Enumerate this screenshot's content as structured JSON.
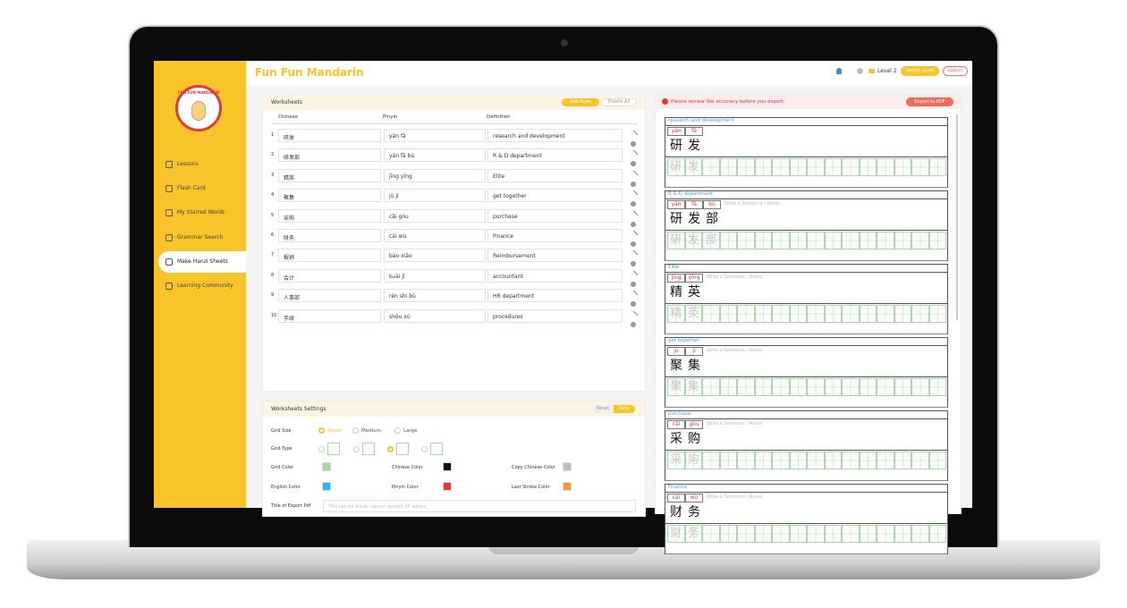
{
  "header": {
    "brand": "Fun Fun Mandarin",
    "logo_text": "FUN FUN MANDARIN",
    "level": "Level 2",
    "switch_level": "Switch Level",
    "logout": "Logout"
  },
  "sidebar": {
    "items": [
      "Lessons",
      "Flash Card",
      "My Starred Words",
      "Grammar Search",
      "Make Hanzi Sheets",
      "Learning Community"
    ],
    "active": 4
  },
  "worksheets": {
    "title": "Worksheets",
    "add_rows": "Add Rows",
    "delete_all": "Delete All",
    "columns": [
      "Chinese",
      "Pinyin",
      "Definition"
    ],
    "rows": [
      {
        "no": 1,
        "chinese": "研发",
        "pinyin": "yán fā",
        "definition": "research and development"
      },
      {
        "no": 2,
        "chinese": "研发部",
        "pinyin": "yán fā bù",
        "definition": "R & D department"
      },
      {
        "no": 3,
        "chinese": "精英",
        "pinyin": "jīng yīng",
        "definition": "Elite"
      },
      {
        "no": 4,
        "chinese": "聚集",
        "pinyin": "jù jí",
        "definition": "get together"
      },
      {
        "no": 5,
        "chinese": "采购",
        "pinyin": "cǎi gòu",
        "definition": "purchase"
      },
      {
        "no": 6,
        "chinese": "财务",
        "pinyin": "cái wù",
        "definition": "Finance"
      },
      {
        "no": 7,
        "chinese": "报销",
        "pinyin": "bào xiāo",
        "definition": "Reimbursement"
      },
      {
        "no": 8,
        "chinese": "会计",
        "pinyin": "kuài jì",
        "definition": "accountant"
      },
      {
        "no": 9,
        "chinese": "人事部",
        "pinyin": "rén shì bù",
        "definition": "HR department"
      },
      {
        "no": 10,
        "chinese": "手续",
        "pinyin": "shǒu xù",
        "definition": "procedures"
      }
    ]
  },
  "settings": {
    "title": "Worksheets Settings",
    "reset": "Reset",
    "save": "Save",
    "grid_size": {
      "label": "Grid Size",
      "options": [
        "Small",
        "Medium",
        "Large"
      ],
      "selected": 0
    },
    "grid_type": {
      "label": "Grid Type",
      "selected": 2
    },
    "colors": [
      {
        "label": "Grid Color",
        "color": "#a5d6a7"
      },
      {
        "label": "Chinese Color",
        "color": "#111111"
      },
      {
        "label": "Copy Chinese Color",
        "color": "#bdbdbd"
      },
      {
        "label": "English Color",
        "color": "#29b6f6"
      },
      {
        "label": "Pinyin Color",
        "color": "#e53935"
      },
      {
        "label": "Last Stroke Color",
        "color": "#ef9a3c"
      }
    ],
    "export_title": {
      "label": "Title of Export Pdf",
      "placeholder": "This can be blank, cannot exceed 30 letters"
    }
  },
  "preview": {
    "warning": "Please review the accuracy before you export.",
    "export": "Export to PDF",
    "notes_placeholder": "Write a Sentence / Notes",
    "cards": [
      {
        "definition": "research and development",
        "syllables": [
          {
            "pinyin": "yán",
            "hanzi": "研"
          },
          {
            "pinyin": "fā",
            "hanzi": "发"
          }
        ]
      },
      {
        "definition": "R & D department",
        "syllables": [
          {
            "pinyin": "yán",
            "hanzi": "研"
          },
          {
            "pinyin": "fā",
            "hanzi": "发"
          },
          {
            "pinyin": "bù",
            "hanzi": "部"
          }
        ]
      },
      {
        "definition": "Elite",
        "syllables": [
          {
            "pinyin": "jīng",
            "hanzi": "精"
          },
          {
            "pinyin": "yīng",
            "hanzi": "英"
          }
        ]
      },
      {
        "definition": "get together",
        "syllables": [
          {
            "pinyin": "jù",
            "hanzi": "聚"
          },
          {
            "pinyin": "jí",
            "hanzi": "集"
          }
        ]
      },
      {
        "definition": "purchase",
        "syllables": [
          {
            "pinyin": "cǎi",
            "hanzi": "采"
          },
          {
            "pinyin": "gòu",
            "hanzi": "购"
          }
        ]
      },
      {
        "definition": "Finance",
        "syllables": [
          {
            "pinyin": "cái",
            "hanzi": "财"
          },
          {
            "pinyin": "wù",
            "hanzi": "务"
          }
        ]
      }
    ]
  }
}
